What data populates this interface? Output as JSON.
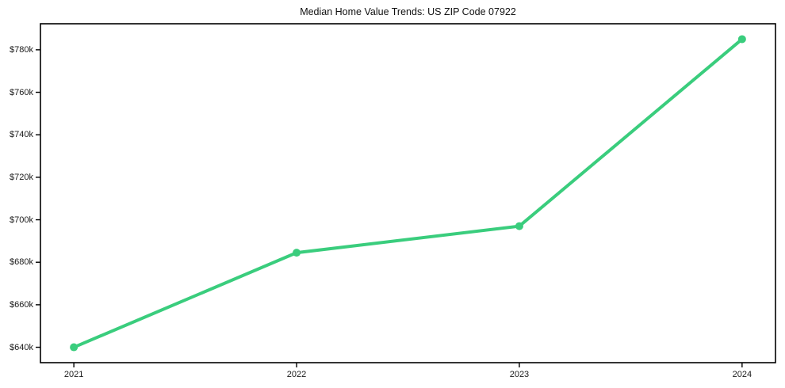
{
  "figure": {
    "background": "#ffffff"
  },
  "chart_data": {
    "type": "line",
    "title": "Median Home Value Trends: US ZIP Code 07922",
    "x": [
      2021,
      2022,
      2023,
      2024
    ],
    "x_tick_labels": [
      "2021",
      "2022",
      "2023",
      "2024"
    ],
    "series": [
      {
        "values": [
          640000,
          684500,
          697000,
          785000
        ],
        "color": "#3acd7d",
        "line_width": 4,
        "marker": "circle",
        "marker_radius": 5
      }
    ],
    "y_ticks": [
      640000,
      660000,
      680000,
      700000,
      720000,
      740000,
      760000,
      780000
    ],
    "y_tick_labels": [
      "$640k",
      "$660k",
      "$680k",
      "$700k",
      "$720k",
      "$740k",
      "$760k",
      "$780k"
    ],
    "xlim": [
      2020.85,
      2024.15
    ],
    "ylim": [
      632750,
      792250
    ],
    "grid": false,
    "legend_position": "none",
    "xlabel": "",
    "ylabel": ""
  },
  "colors": {
    "spine": "#000000",
    "tick": "#000000",
    "tick_label": "#1a1a1a",
    "title": "#111111",
    "background": "#ffffff"
  }
}
